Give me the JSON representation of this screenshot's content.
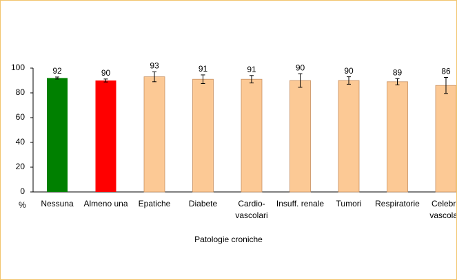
{
  "chart_data": {
    "type": "bar",
    "categories": [
      "Nessuna",
      "Almeno una",
      "Epatiche",
      "Diabete",
      "Cardio-vascolari",
      "Insuff. renale",
      "Tumori",
      "Respiratorie",
      "Celebro vascolari"
    ],
    "values": [
      92,
      90,
      93,
      91,
      91,
      90,
      90,
      89,
      86
    ],
    "errors": [
      0.8,
      1.2,
      4,
      3.5,
      3,
      5.5,
      3,
      2.5,
      6.5
    ],
    "colors": [
      "#008000",
      "#ff0000",
      "#fcc995",
      "#fcc995",
      "#fcc995",
      "#fcc995",
      "#fcc995",
      "#fcc995",
      "#fcc995"
    ],
    "ylim": [
      0,
      100
    ],
    "yticks": [
      0,
      20,
      40,
      60,
      80,
      100
    ],
    "y_unit_label": "%",
    "xlabel": "Patologie croniche"
  }
}
